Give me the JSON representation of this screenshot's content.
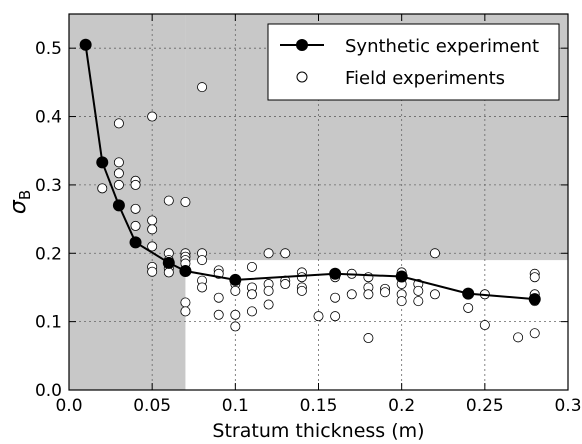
{
  "chart_data": {
    "type": "scatter",
    "xlabel": "Stratum thickness (m)",
    "ylabel_symbol": "σ",
    "ylabel_subscript": "B",
    "xlim": [
      0.0,
      0.3
    ],
    "ylim": [
      0.0,
      0.55
    ],
    "xticks": [
      0.0,
      0.05,
      0.1,
      0.15,
      0.2,
      0.25,
      0.3
    ],
    "xtick_labels": [
      "0.0",
      "0.05",
      "0.1",
      "0.15",
      "0.2",
      "0.25",
      "0.3"
    ],
    "yticks": [
      0.0,
      0.1,
      0.2,
      0.3,
      0.4,
      0.5
    ],
    "ytick_labels": [
      "0.0",
      "0.1",
      "0.2",
      "0.3",
      "0.4",
      "0.5"
    ],
    "grid": true,
    "legend_position": "top-right",
    "shaded_regions": [
      {
        "x": [
          0.0,
          0.07
        ],
        "y": [
          0.0,
          0.55
        ],
        "color": "#c8c8c8"
      },
      {
        "x": [
          0.07,
          0.3
        ],
        "y": [
          0.19,
          0.55
        ],
        "color": "#c8c8c8"
      }
    ],
    "series": [
      {
        "name": "Synthetic experiment",
        "style": "line-marker",
        "color": "#000000",
        "points": [
          [
            0.01,
            0.505
          ],
          [
            0.02,
            0.333
          ],
          [
            0.03,
            0.27
          ],
          [
            0.04,
            0.216
          ],
          [
            0.06,
            0.186
          ],
          [
            0.07,
            0.174
          ],
          [
            0.1,
            0.161
          ],
          [
            0.16,
            0.17
          ],
          [
            0.2,
            0.166
          ],
          [
            0.24,
            0.141
          ],
          [
            0.28,
            0.133
          ]
        ]
      },
      {
        "name": "Field experiments",
        "style": "open-marker",
        "color": "#000000",
        "points": [
          [
            0.02,
            0.295
          ],
          [
            0.03,
            0.39
          ],
          [
            0.03,
            0.333
          ],
          [
            0.03,
            0.317
          ],
          [
            0.03,
            0.3
          ],
          [
            0.04,
            0.306
          ],
          [
            0.04,
            0.3
          ],
          [
            0.04,
            0.265
          ],
          [
            0.04,
            0.24
          ],
          [
            0.05,
            0.4
          ],
          [
            0.05,
            0.248
          ],
          [
            0.05,
            0.235
          ],
          [
            0.05,
            0.21
          ],
          [
            0.05,
            0.18
          ],
          [
            0.05,
            0.173
          ],
          [
            0.06,
            0.277
          ],
          [
            0.06,
            0.2
          ],
          [
            0.06,
            0.19
          ],
          [
            0.06,
            0.178
          ],
          [
            0.06,
            0.172
          ],
          [
            0.07,
            0.275
          ],
          [
            0.07,
            0.2
          ],
          [
            0.07,
            0.195
          ],
          [
            0.07,
            0.19
          ],
          [
            0.07,
            0.185
          ],
          [
            0.07,
            0.128
          ],
          [
            0.07,
            0.115
          ],
          [
            0.08,
            0.443
          ],
          [
            0.08,
            0.2
          ],
          [
            0.08,
            0.19
          ],
          [
            0.08,
            0.16
          ],
          [
            0.08,
            0.15
          ],
          [
            0.09,
            0.175
          ],
          [
            0.09,
            0.17
          ],
          [
            0.09,
            0.135
          ],
          [
            0.09,
            0.11
          ],
          [
            0.1,
            0.16
          ],
          [
            0.1,
            0.155
          ],
          [
            0.1,
            0.145
          ],
          [
            0.1,
            0.11
          ],
          [
            0.1,
            0.093
          ],
          [
            0.11,
            0.18
          ],
          [
            0.11,
            0.15
          ],
          [
            0.11,
            0.14
          ],
          [
            0.11,
            0.115
          ],
          [
            0.12,
            0.2
          ],
          [
            0.12,
            0.155
          ],
          [
            0.12,
            0.145
          ],
          [
            0.12,
            0.125
          ],
          [
            0.13,
            0.2
          ],
          [
            0.13,
            0.16
          ],
          [
            0.13,
            0.155
          ],
          [
            0.14,
            0.172
          ],
          [
            0.14,
            0.165
          ],
          [
            0.14,
            0.15
          ],
          [
            0.14,
            0.145
          ],
          [
            0.15,
            0.108
          ],
          [
            0.16,
            0.165
          ],
          [
            0.16,
            0.135
          ],
          [
            0.16,
            0.108
          ],
          [
            0.17,
            0.17
          ],
          [
            0.17,
            0.14
          ],
          [
            0.18,
            0.165
          ],
          [
            0.18,
            0.15
          ],
          [
            0.18,
            0.14
          ],
          [
            0.18,
            0.076
          ],
          [
            0.19,
            0.148
          ],
          [
            0.19,
            0.143
          ],
          [
            0.2,
            0.172
          ],
          [
            0.2,
            0.165
          ],
          [
            0.2,
            0.155
          ],
          [
            0.2,
            0.14
          ],
          [
            0.2,
            0.13
          ],
          [
            0.21,
            0.155
          ],
          [
            0.21,
            0.145
          ],
          [
            0.21,
            0.13
          ],
          [
            0.22,
            0.2
          ],
          [
            0.22,
            0.14
          ],
          [
            0.24,
            0.12
          ],
          [
            0.25,
            0.14
          ],
          [
            0.25,
            0.095
          ],
          [
            0.27,
            0.077
          ],
          [
            0.28,
            0.17
          ],
          [
            0.28,
            0.165
          ],
          [
            0.28,
            0.14
          ],
          [
            0.28,
            0.13
          ],
          [
            0.28,
            0.083
          ]
        ]
      }
    ]
  }
}
